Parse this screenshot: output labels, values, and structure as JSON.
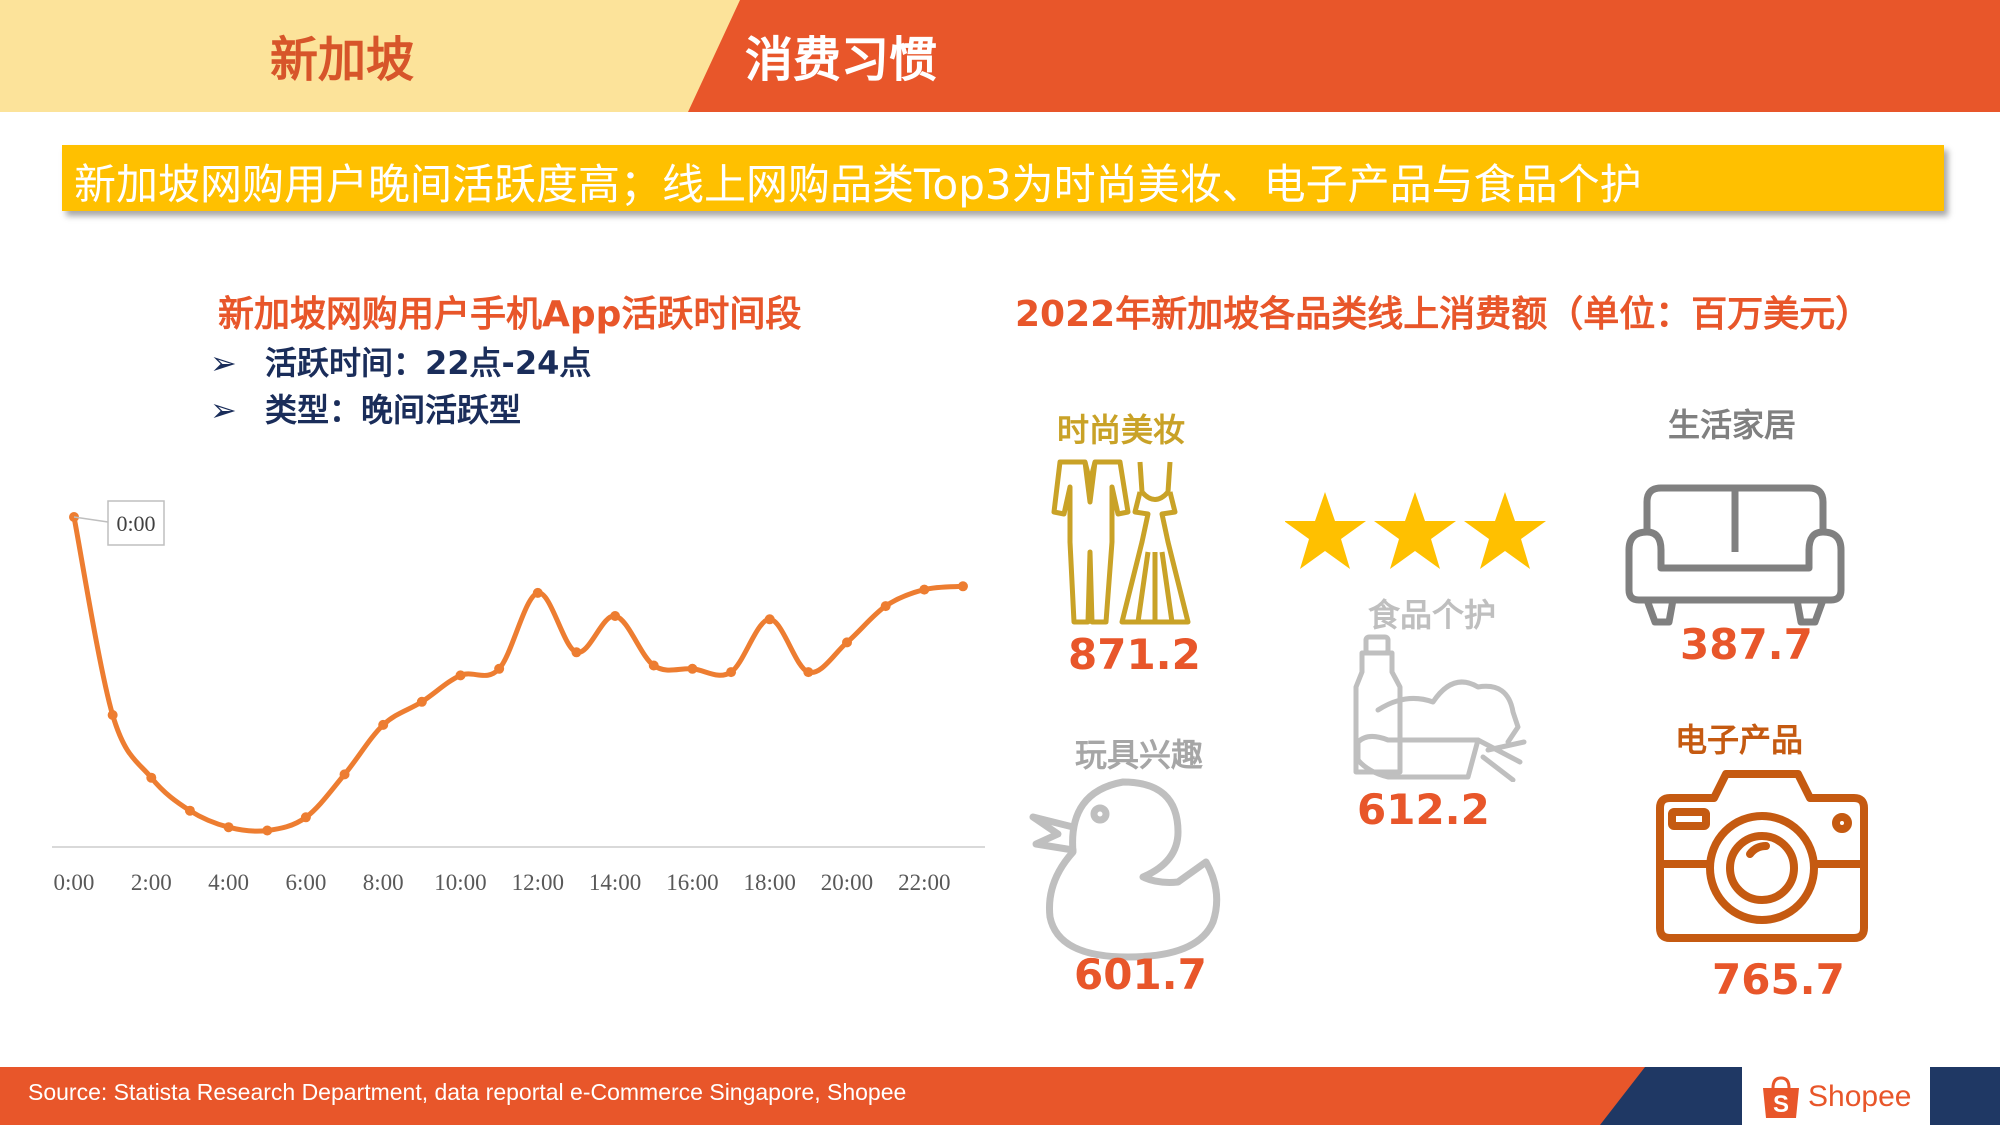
{
  "header": {
    "country": "新加坡",
    "section": "消费习惯"
  },
  "banner": {
    "text": "新加坡网购用户晚间活跃度高；线上网购品类Top3为时尚美妆、电子产品与食品个护"
  },
  "left_panel": {
    "title": "新加坡网购用户手机App活跃时间段",
    "bullets": [
      "活跃时间：22点-24点",
      "类型：晚间活跃型"
    ],
    "bullet_symbol": "➢"
  },
  "right_panel": {
    "title": "2022年新加坡各品类线上消费额（单位：百万美元）",
    "categories": [
      {
        "label": "时尚美妆",
        "value": "871.2",
        "icon": "clothing-icon",
        "color": "#C9A227"
      },
      {
        "label": "食品个护",
        "value": "612.2",
        "icon": "groceries-icon",
        "color": "#BFBFBF"
      },
      {
        "label": "生活家居",
        "value": "387.7",
        "icon": "sofa-icon",
        "color": "#808080"
      },
      {
        "label": "玩具兴趣",
        "value": "601.7",
        "icon": "rubber-duck-icon",
        "color": "#A6A6A6"
      },
      {
        "label": "电子产品",
        "value": "765.7",
        "icon": "camera-icon",
        "color": "#C55A11"
      }
    ],
    "stars": 3,
    "star_color": "#FFC000"
  },
  "footer": {
    "source": "Source: Statista Research Department, data reportal e-Commerce Singapore, Shopee",
    "logo_text": "Shopee",
    "logo_icon": "shopee-bag-icon",
    "logo_letter": "S"
  },
  "colors": {
    "accent": "#E8562A",
    "header_light": "#FCE39A",
    "banner": "#FFC000",
    "navy": "#1F3864",
    "line": "#ED7D31"
  },
  "chart_data": {
    "type": "line",
    "title": "新加坡网购用户手机App活跃时间段",
    "x": [
      "0:00",
      "1:00",
      "2:00",
      "3:00",
      "4:00",
      "5:00",
      "6:00",
      "7:00",
      "8:00",
      "9:00",
      "10:00",
      "11:00",
      "12:00",
      "13:00",
      "14:00",
      "15:00",
      "16:00",
      "17:00",
      "18:00",
      "19:00",
      "20:00",
      "21:00",
      "22:00",
      "23:00"
    ],
    "x_tick_labels": [
      "0:00",
      "2:00",
      "4:00",
      "6:00",
      "8:00",
      "10:00",
      "12:00",
      "14:00",
      "16:00",
      "18:00",
      "20:00",
      "22:00"
    ],
    "series": [
      {
        "values": [
          100,
          40,
          21,
          11,
          6,
          5,
          9,
          22,
          37,
          44,
          52,
          54,
          77,
          59,
          70,
          55,
          54,
          53,
          69,
          53,
          62,
          73,
          78,
          79
        ]
      }
    ],
    "ylim": [
      0,
      105
    ],
    "annotation": {
      "label": "0:00",
      "point_index": 0
    },
    "grid": false,
    "legend": "none",
    "xlabel": "",
    "ylabel": ""
  }
}
